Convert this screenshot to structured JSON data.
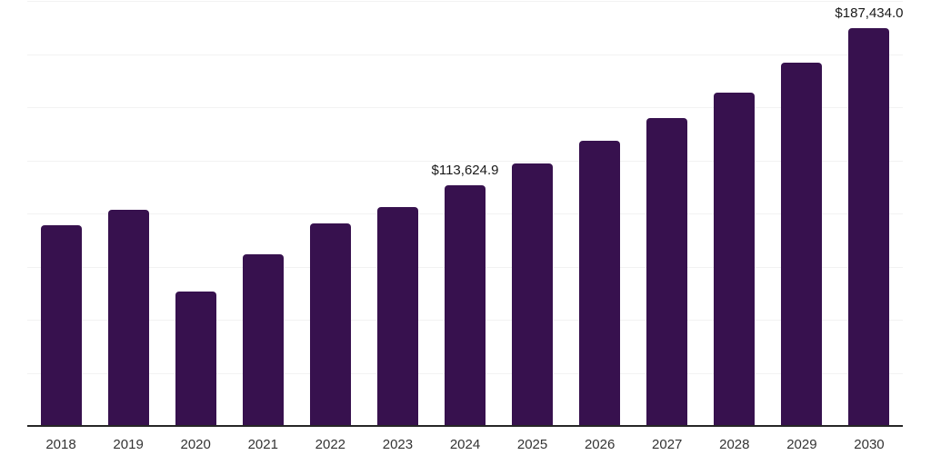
{
  "chart_data": {
    "type": "bar",
    "title": "",
    "xlabel": "",
    "ylabel": "",
    "categories": [
      "2018",
      "2019",
      "2020",
      "2021",
      "2022",
      "2023",
      "2024",
      "2025",
      "2026",
      "2027",
      "2028",
      "2029",
      "2030"
    ],
    "values": [
      94700,
      102300,
      63500,
      81000,
      95600,
      103400,
      113624.9,
      123900,
      134600,
      145300,
      157300,
      171200,
      187434.0
    ],
    "value_labels": [
      {
        "category": "2024",
        "text": "$113,624.9"
      },
      {
        "category": "2030",
        "text": "$187,434.0"
      }
    ],
    "ylim": [
      0,
      200000
    ],
    "gridline_step": 25000,
    "grid": "horizontal",
    "legend": "none",
    "y_tick_labels_visible": false
  },
  "colors": {
    "bar": "#37114E",
    "gridline": "#F2F2F2",
    "axis_line": "#262626",
    "tick_label_text": "#333333",
    "value_label_text": "#1A1A1A",
    "background": "#FFFFFF"
  }
}
